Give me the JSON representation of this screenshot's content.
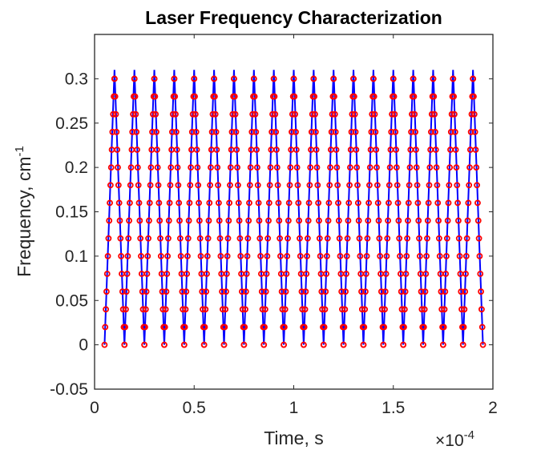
{
  "chart_data": {
    "type": "line",
    "title": "Laser Frequency Characterization",
    "xlabel": "Time, s",
    "ylabel": "Frequency, cm",
    "ylabel_superscript": "-1",
    "x_exponent_base": "×10",
    "x_exponent_power": "-4",
    "xlim": [
      0,
      2
    ],
    "ylim": [
      -0.05,
      0.35
    ],
    "x_ticks": [
      "0",
      "0.5",
      "1",
      "1.5",
      "2"
    ],
    "y_ticks": [
      "-0.05",
      "0",
      "0.05",
      "0.1",
      "0.15",
      "0.2",
      "0.25",
      "0.3"
    ],
    "grid": false,
    "series": [
      {
        "style": "line",
        "color": "#0000ff",
        "description": "triangular frequency sweep",
        "sweep": {
          "x_start": 0.05,
          "x_end": 1.95,
          "n_periods": 19,
          "y_min": 0,
          "y_max": 0.31
        }
      },
      {
        "style": "markers",
        "marker": "circle",
        "color": "#ff0000",
        "sweep": {
          "x_start": 0.05,
          "x_end": 1.95,
          "n_periods": 19,
          "y_min": 0,
          "y_max": 0.3,
          "y_step": 0.02
        }
      }
    ]
  }
}
